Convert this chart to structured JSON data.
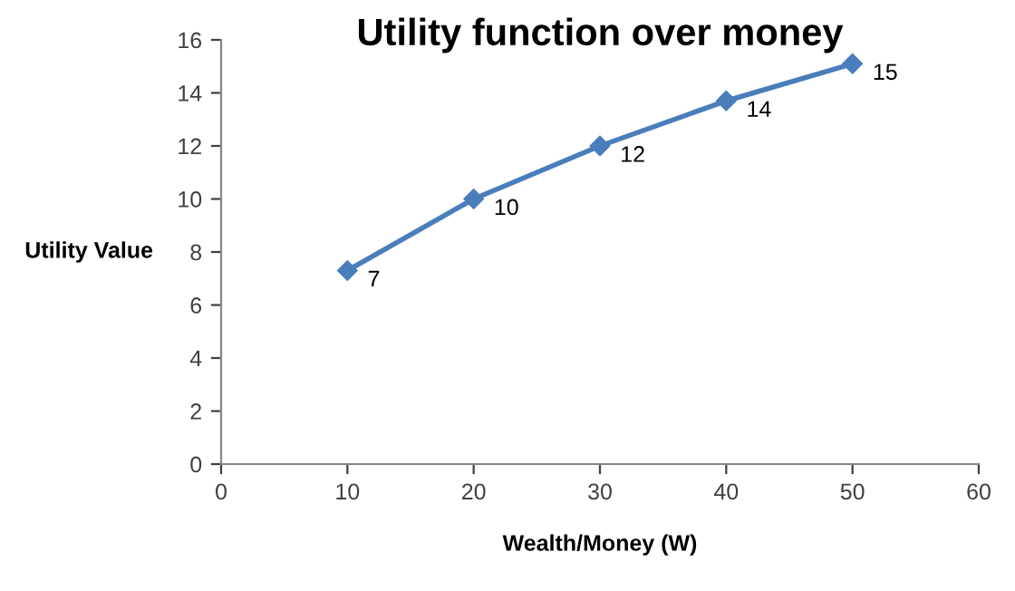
{
  "chart_data": {
    "type": "line",
    "title": "Utility function over money",
    "xlabel": "Wealth/Money (W)",
    "ylabel": "Utility Value",
    "x": [
      10,
      20,
      30,
      40,
      50
    ],
    "series": [
      {
        "color": "#4a7ebb",
        "values": [
          7.3,
          10,
          12,
          13.7,
          15.1
        ],
        "value_labels": [
          "7",
          "10",
          "12",
          "14",
          "15"
        ]
      }
    ],
    "xlim": [
      0,
      60
    ],
    "xticks": [
      0,
      10,
      20,
      30,
      40,
      50,
      60
    ],
    "ylim": [
      0,
      16
    ],
    "yticks": [
      0,
      2,
      4,
      6,
      8,
      10,
      12,
      14,
      16
    ],
    "grid": false,
    "legend": false,
    "marker": "diamond",
    "line_style": "solid"
  }
}
